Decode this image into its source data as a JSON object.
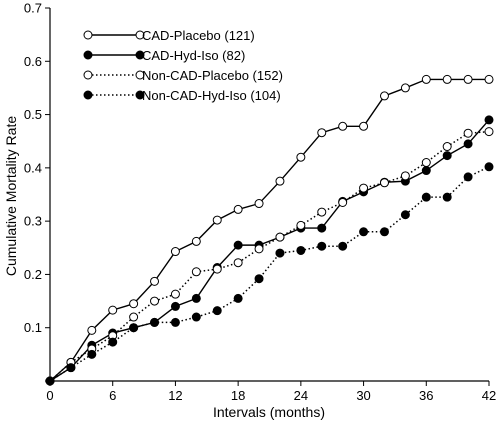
{
  "chart_data": {
    "type": "line",
    "xlabel": "Intervals (months)",
    "ylabel": "Cumulative Mortality Rate",
    "xlim": [
      0,
      42
    ],
    "ylim": [
      0,
      0.7
    ],
    "xticks": [
      0,
      6,
      12,
      18,
      24,
      30,
      36,
      42
    ],
    "yticks": [
      0.1,
      0.2,
      0.3,
      0.4,
      0.5,
      0.6,
      0.7
    ],
    "xtick_labels": [
      "0",
      "6",
      "12",
      "18",
      "24",
      "30",
      "36",
      "42"
    ],
    "ytick_labels": [
      "0.1",
      "0.2",
      "0.3",
      "0.4",
      "0.5",
      "0.6",
      "0.7"
    ],
    "grid": false,
    "legend_position": "top-left",
    "series": [
      {
        "name": "CAD-Placebo (121)",
        "line_style": "solid",
        "marker": "open-circle",
        "x": [
          0,
          2,
          4,
          6,
          8,
          10,
          12,
          14,
          16,
          18,
          20,
          22,
          24,
          26,
          28,
          30,
          32,
          34,
          36,
          38,
          40,
          42
        ],
        "y": [
          0.0,
          0.035,
          0.095,
          0.133,
          0.145,
          0.187,
          0.243,
          0.262,
          0.302,
          0.322,
          0.333,
          0.375,
          0.42,
          0.466,
          0.478,
          0.478,
          0.535,
          0.55,
          0.566,
          0.566,
          0.566,
          0.566
        ]
      },
      {
        "name": "CAD-Hyd-Iso (82)",
        "line_style": "solid",
        "marker": "filled-circle",
        "x": [
          0,
          2,
          4,
          6,
          8,
          10,
          12,
          14,
          16,
          18,
          20,
          22,
          24,
          26,
          28,
          30,
          32,
          34,
          36,
          38,
          40,
          42
        ],
        "y": [
          0.0,
          0.025,
          0.067,
          0.09,
          0.1,
          0.11,
          0.14,
          0.155,
          0.213,
          0.255,
          0.255,
          0.27,
          0.287,
          0.287,
          0.337,
          0.355,
          0.373,
          0.375,
          0.395,
          0.423,
          0.445,
          0.49
        ]
      },
      {
        "name": "Non-CAD-Placebo (152)",
        "line_style": "dotted",
        "marker": "open-circle",
        "x": [
          0,
          2,
          4,
          6,
          8,
          10,
          12,
          14,
          16,
          18,
          20,
          22,
          24,
          26,
          28,
          30,
          32,
          34,
          36,
          38,
          40,
          42
        ],
        "y": [
          0.0,
          0.035,
          0.06,
          0.085,
          0.12,
          0.15,
          0.163,
          0.205,
          0.21,
          0.222,
          0.248,
          0.27,
          0.292,
          0.317,
          0.335,
          0.362,
          0.372,
          0.385,
          0.41,
          0.44,
          0.465,
          0.468
        ]
      },
      {
        "name": "Non-CAD-Hyd-Iso (104)",
        "line_style": "dotted",
        "marker": "filled-circle",
        "x": [
          0,
          2,
          4,
          6,
          8,
          10,
          12,
          14,
          16,
          18,
          20,
          22,
          24,
          26,
          28,
          30,
          32,
          34,
          36,
          38,
          40,
          42
        ],
        "y": [
          0.0,
          0.025,
          0.05,
          0.073,
          0.1,
          0.11,
          0.11,
          0.12,
          0.132,
          0.155,
          0.192,
          0.24,
          0.245,
          0.253,
          0.253,
          0.28,
          0.28,
          0.312,
          0.345,
          0.345,
          0.383,
          0.402
        ]
      }
    ]
  }
}
